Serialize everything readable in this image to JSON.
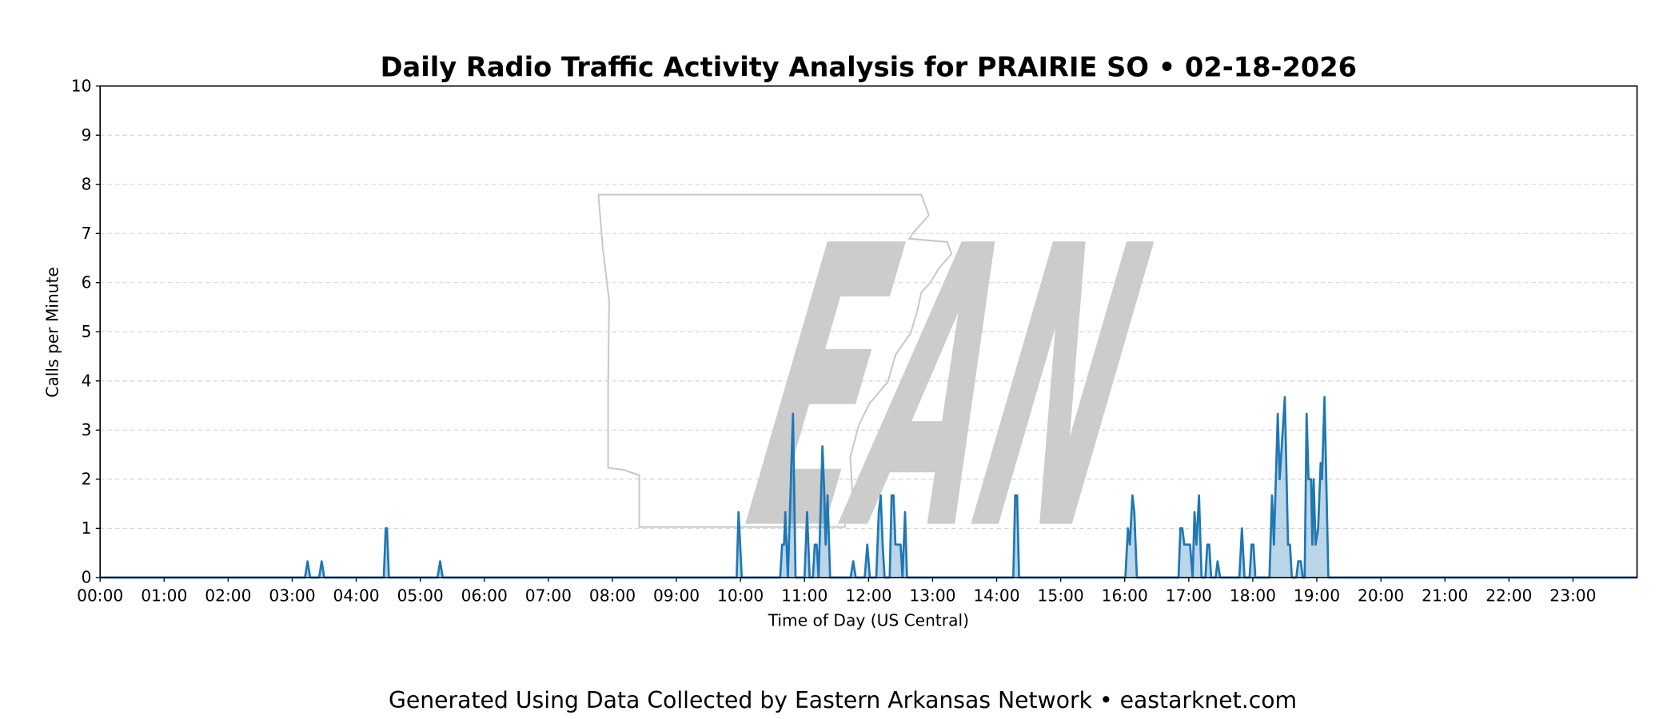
{
  "chart_data": {
    "type": "area",
    "title": "Daily Radio Traffic Activity Analysis for PRAIRIE SO • 02-18-2026",
    "xlabel": "Time of Day (US Central)",
    "ylabel": "Calls per Minute",
    "footer": "Generated Using Data Collected by Eastern Arkansas Network • eastarknet.com",
    "watermark": "EAN",
    "color": "#1f77b4",
    "grid": true,
    "xlim": [
      0,
      24
    ],
    "ylim": [
      0,
      10
    ],
    "yticks": [
      0,
      1,
      2,
      3,
      4,
      5,
      6,
      7,
      8,
      9,
      10
    ],
    "xticks": [
      {
        "value": 0,
        "label": "00:00"
      },
      {
        "value": 1,
        "label": "01:00"
      },
      {
        "value": 2,
        "label": "02:00"
      },
      {
        "value": 3,
        "label": "03:00"
      },
      {
        "value": 4,
        "label": "04:00"
      },
      {
        "value": 5,
        "label": "05:00"
      },
      {
        "value": 6,
        "label": "06:00"
      },
      {
        "value": 7,
        "label": "07:00"
      },
      {
        "value": 8,
        "label": "08:00"
      },
      {
        "value": 9,
        "label": "09:00"
      },
      {
        "value": 10,
        "label": "10:00"
      },
      {
        "value": 11,
        "label": "11:00"
      },
      {
        "value": 12,
        "label": "12:00"
      },
      {
        "value": 13,
        "label": "13:00"
      },
      {
        "value": 14,
        "label": "14:00"
      },
      {
        "value": 15,
        "label": "15:00"
      },
      {
        "value": 16,
        "label": "16:00"
      },
      {
        "value": 17,
        "label": "17:00"
      },
      {
        "value": 18,
        "label": "18:00"
      },
      {
        "value": 19,
        "label": "19:00"
      },
      {
        "value": 20,
        "label": "20:00"
      },
      {
        "value": 21,
        "label": "21:00"
      },
      {
        "value": 22,
        "label": "22:00"
      },
      {
        "value": 23,
        "label": "23:00"
      }
    ],
    "x": [
      0,
      3.2,
      3.24,
      3.28,
      3.42,
      3.46,
      3.5,
      4.43,
      4.46,
      4.48,
      4.51,
      5.27,
      5.31,
      5.35,
      9.94,
      9.97,
      10.02,
      10.62,
      10.65,
      10.68,
      10.7,
      10.74,
      10.82,
      10.86,
      11.0,
      11.04,
      11.08,
      11.13,
      11.16,
      11.19,
      11.22,
      11.28,
      11.31,
      11.33,
      11.36,
      11.4,
      11.72,
      11.76,
      11.8,
      11.94,
      11.98,
      12.02,
      12.12,
      12.16,
      12.19,
      12.22,
      12.25,
      12.33,
      12.36,
      12.39,
      12.42,
      12.5,
      12.53,
      12.57,
      12.6,
      14.26,
      14.29,
      14.32,
      14.35,
      16.01,
      16.05,
      16.08,
      16.12,
      16.15,
      16.19,
      16.84,
      16.87,
      16.9,
      16.93,
      17.02,
      17.06,
      17.09,
      17.12,
      17.16,
      17.2,
      17.26,
      17.29,
      17.32,
      17.35,
      17.42,
      17.45,
      17.49,
      17.79,
      17.83,
      17.87,
      17.95,
      17.98,
      18.01,
      18.04,
      18.26,
      18.3,
      18.33,
      18.39,
      18.42,
      18.5,
      18.55,
      18.58,
      18.61,
      18.68,
      18.71,
      18.75,
      18.78,
      18.81,
      18.84,
      18.87,
      18.91,
      18.93,
      18.95,
      18.98,
      19.02,
      19.06,
      19.08,
      19.12,
      19.18,
      24
    ],
    "values": [
      0,
      0,
      0.33,
      0,
      0,
      0.33,
      0,
      0,
      1,
      1,
      0,
      0,
      0.33,
      0,
      0,
      1.33,
      0,
      0,
      0.67,
      0.67,
      1.33,
      0,
      3.33,
      0,
      0,
      1.33,
      0,
      0,
      0.67,
      0.67,
      0,
      2.67,
      1.67,
      0.67,
      1.67,
      0,
      0,
      0.33,
      0,
      0,
      0.67,
      0,
      0,
      1.33,
      1.67,
      0.67,
      0,
      0,
      1.67,
      1.67,
      0.67,
      0.67,
      0,
      1.33,
      0,
      0,
      1.67,
      1.67,
      0,
      0,
      1,
      0.67,
      1.67,
      1.33,
      0,
      0,
      1,
      1,
      0.67,
      0.67,
      0,
      1.33,
      0.67,
      1.67,
      0,
      0,
      0.67,
      0.67,
      0,
      0,
      0.33,
      0,
      0,
      1,
      0,
      0,
      0.67,
      0.67,
      0,
      0,
      1.67,
      0.67,
      3.33,
      2,
      3.67,
      0.67,
      0.67,
      0,
      0,
      0.33,
      0.33,
      0,
      0,
      3.33,
      2,
      2,
      0.67,
      2,
      0.67,
      1,
      2.33,
      2,
      3.67,
      0,
      0
    ]
  }
}
